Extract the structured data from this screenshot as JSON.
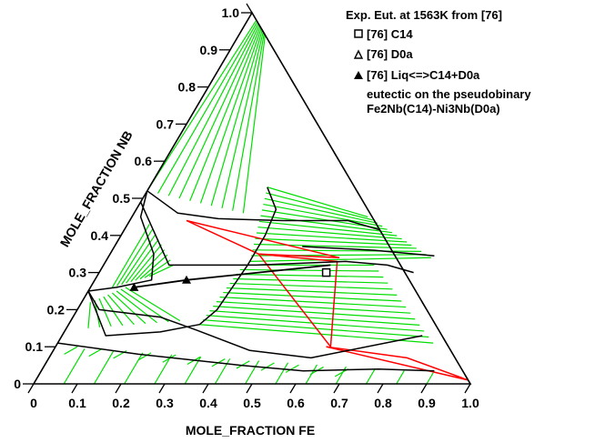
{
  "chart_data": {
    "type": "ternary_phase_diagram",
    "axes": {
      "bottom": {
        "label": "MOLE_FRACTION FE",
        "ticks": [
          "0",
          "0.1",
          "0.2",
          "0.3",
          "0.4",
          "0.5",
          "0.6",
          "0.7",
          "0.8",
          "0.9",
          "1.0"
        ]
      },
      "left": {
        "label": "MOLE_FRACTION NB",
        "ticks": [
          "0",
          "0.1",
          "0.2",
          "0.3",
          "0.4",
          "0.5",
          "0.6",
          "0.7",
          "0.8",
          "0.9",
          "1.0"
        ]
      },
      "range": [
        0,
        1
      ]
    },
    "legend": {
      "placement": "top-right",
      "title": "Exp. Eut. at 1563K from [76]",
      "entries": [
        {
          "marker": "open-square",
          "label": "[76] C14"
        },
        {
          "marker": "open-triangle",
          "label": "[76] D0a"
        },
        {
          "marker": "filled-triangle",
          "label": "[76] Liq<=>C14+D0a"
        }
      ],
      "note_lines": [
        "eutectic on the pseudobinary",
        "Fe2Nb(C14)-Ni3Nb(D0a)"
      ]
    },
    "colors": {
      "tie_lines": "#00dd00",
      "three_phase": "#ff0000",
      "boundaries": "#000000",
      "eutectic_line": "#000000"
    },
    "phase_boundaries": [
      {
        "name": "top-liquidus",
        "points": [
          [
            0.03,
            0.97
          ],
          [
            0.06,
            0.94
          ]
        ]
      },
      {
        "name": "c14-upper",
        "points": [
          [
            0.0,
            0.52
          ],
          [
            0.1,
            0.46
          ],
          [
            0.2,
            0.445
          ],
          [
            0.35,
            0.44
          ],
          [
            0.5,
            0.44
          ],
          [
            0.585,
            0.415
          ]
        ]
      },
      {
        "name": "c14-lower",
        "points": [
          [
            0.0,
            0.49
          ],
          [
            0.15,
            0.32
          ],
          [
            0.35,
            0.32
          ],
          [
            0.55,
            0.33
          ],
          [
            0.65,
            0.32
          ],
          [
            0.72,
            0.3
          ]
        ]
      },
      {
        "name": "c14-mid-upper",
        "points": [
          [
            0.43,
            0.37
          ],
          [
            0.6,
            0.36
          ],
          [
            0.745,
            0.345
          ]
        ]
      },
      {
        "name": "d0a-upper",
        "points": [
          [
            0.0,
            0.25
          ],
          [
            0.05,
            0.2
          ],
          [
            0.2,
            0.18
          ],
          [
            0.3,
            0.145
          ],
          [
            0.45,
            0.09
          ],
          [
            0.6,
            0.07
          ],
          [
            0.825,
            0.13
          ]
        ]
      },
      {
        "name": "d0a-lower",
        "points": [
          [
            0.0,
            0.11
          ],
          [
            0.2,
            0.08
          ],
          [
            0.45,
            0.05
          ],
          [
            0.6,
            0.035
          ],
          [
            0.77,
            0.04
          ],
          [
            0.9,
            0.035
          ]
        ]
      },
      {
        "name": "liquid-right",
        "points": [
          [
            0.27,
            0.53
          ],
          [
            0.32,
            0.47
          ],
          [
            0.33,
            0.4
          ],
          [
            0.33,
            0.32
          ],
          [
            0.32,
            0.2
          ],
          [
            0.3,
            0.16
          ],
          [
            0.22,
            0.14
          ],
          [
            0.1,
            0.13
          ],
          [
            0.0,
            0.25
          ]
        ]
      },
      {
        "name": "liquid-left",
        "points": [
          [
            0.0,
            0.52
          ],
          [
            0.02,
            0.45
          ],
          [
            0.1,
            0.35
          ],
          [
            0.13,
            0.28
          ],
          [
            0.06,
            0.26
          ],
          [
            0.0,
            0.25
          ]
        ]
      }
    ],
    "tie_line_fans": [
      {
        "from": [
          [
            0.02,
            0.98
          ],
          [
            0.06,
            0.94
          ]
        ],
        "to": [
          [
            0.0,
            0.52
          ],
          [
            0.25,
            0.46
          ]
        ],
        "count": 10
      },
      {
        "from": [
          [
            0.27,
            0.53
          ],
          [
            0.33,
            0.33
          ]
        ],
        "to": [
          [
            0.54,
            0.45
          ],
          [
            0.74,
            0.34
          ]
        ],
        "count": 14
      },
      {
        "from": [
          [
            0.32,
            0.32
          ],
          [
            0.3,
            0.16
          ]
        ],
        "to": [
          [
            0.62,
            0.32
          ],
          [
            0.86,
            0.11
          ]
        ],
        "count": 14
      },
      {
        "from": [
          [
            0.12,
            0.29
          ],
          [
            0.05,
            0.26
          ]
        ],
        "to": [
          [
            0.16,
            0.32
          ],
          [
            0.05,
            0.43
          ]
        ],
        "count": 9
      },
      {
        "from": [
          [
            0.08,
            0.26
          ],
          [
            0.02,
            0.22
          ]
        ],
        "to": [
          [
            0.25,
            0.17
          ],
          [
            0.05,
            0.15
          ]
        ],
        "count": 9
      },
      {
        "from": [
          [
            0.05,
            0.1
          ],
          [
            0.7,
            0.04
          ]
        ],
        "to": [
          [
            0.03,
            0.08
          ],
          [
            0.68,
            0.02
          ]
        ],
        "count": 12
      },
      {
        "from": [
          [
            0.0,
            0.1
          ],
          [
            0.9,
            0.03
          ]
        ],
        "to": [
          [
            0.0,
            0.0
          ],
          [
            0.9,
            0.0
          ]
        ],
        "count": 14
      }
    ],
    "three_phase_triangles": [
      [
        [
          0.13,
          0.44
        ],
        [
          0.34,
          0.35
        ],
        [
          0.53,
          0.34
        ]
      ],
      [
        [
          0.34,
          0.35
        ],
        [
          0.53,
          0.33
        ],
        [
          0.63,
          0.1
        ]
      ],
      [
        [
          0.62,
          0.1
        ],
        [
          0.82,
          0.07
        ],
        [
          0.99,
          0.01
        ]
      ]
    ],
    "eutectic_line": [
      [
        0.1,
        0.26
      ],
      [
        0.21,
        0.28
      ],
      [
        0.52,
        0.32
      ]
    ],
    "markers": [
      {
        "type": "filled-triangle",
        "point": [
          0.1,
          0.26
        ]
      },
      {
        "type": "filled-triangle",
        "point": [
          0.21,
          0.28
        ]
      },
      {
        "type": "open-square",
        "point": [
          0.52,
          0.3
        ]
      }
    ]
  }
}
